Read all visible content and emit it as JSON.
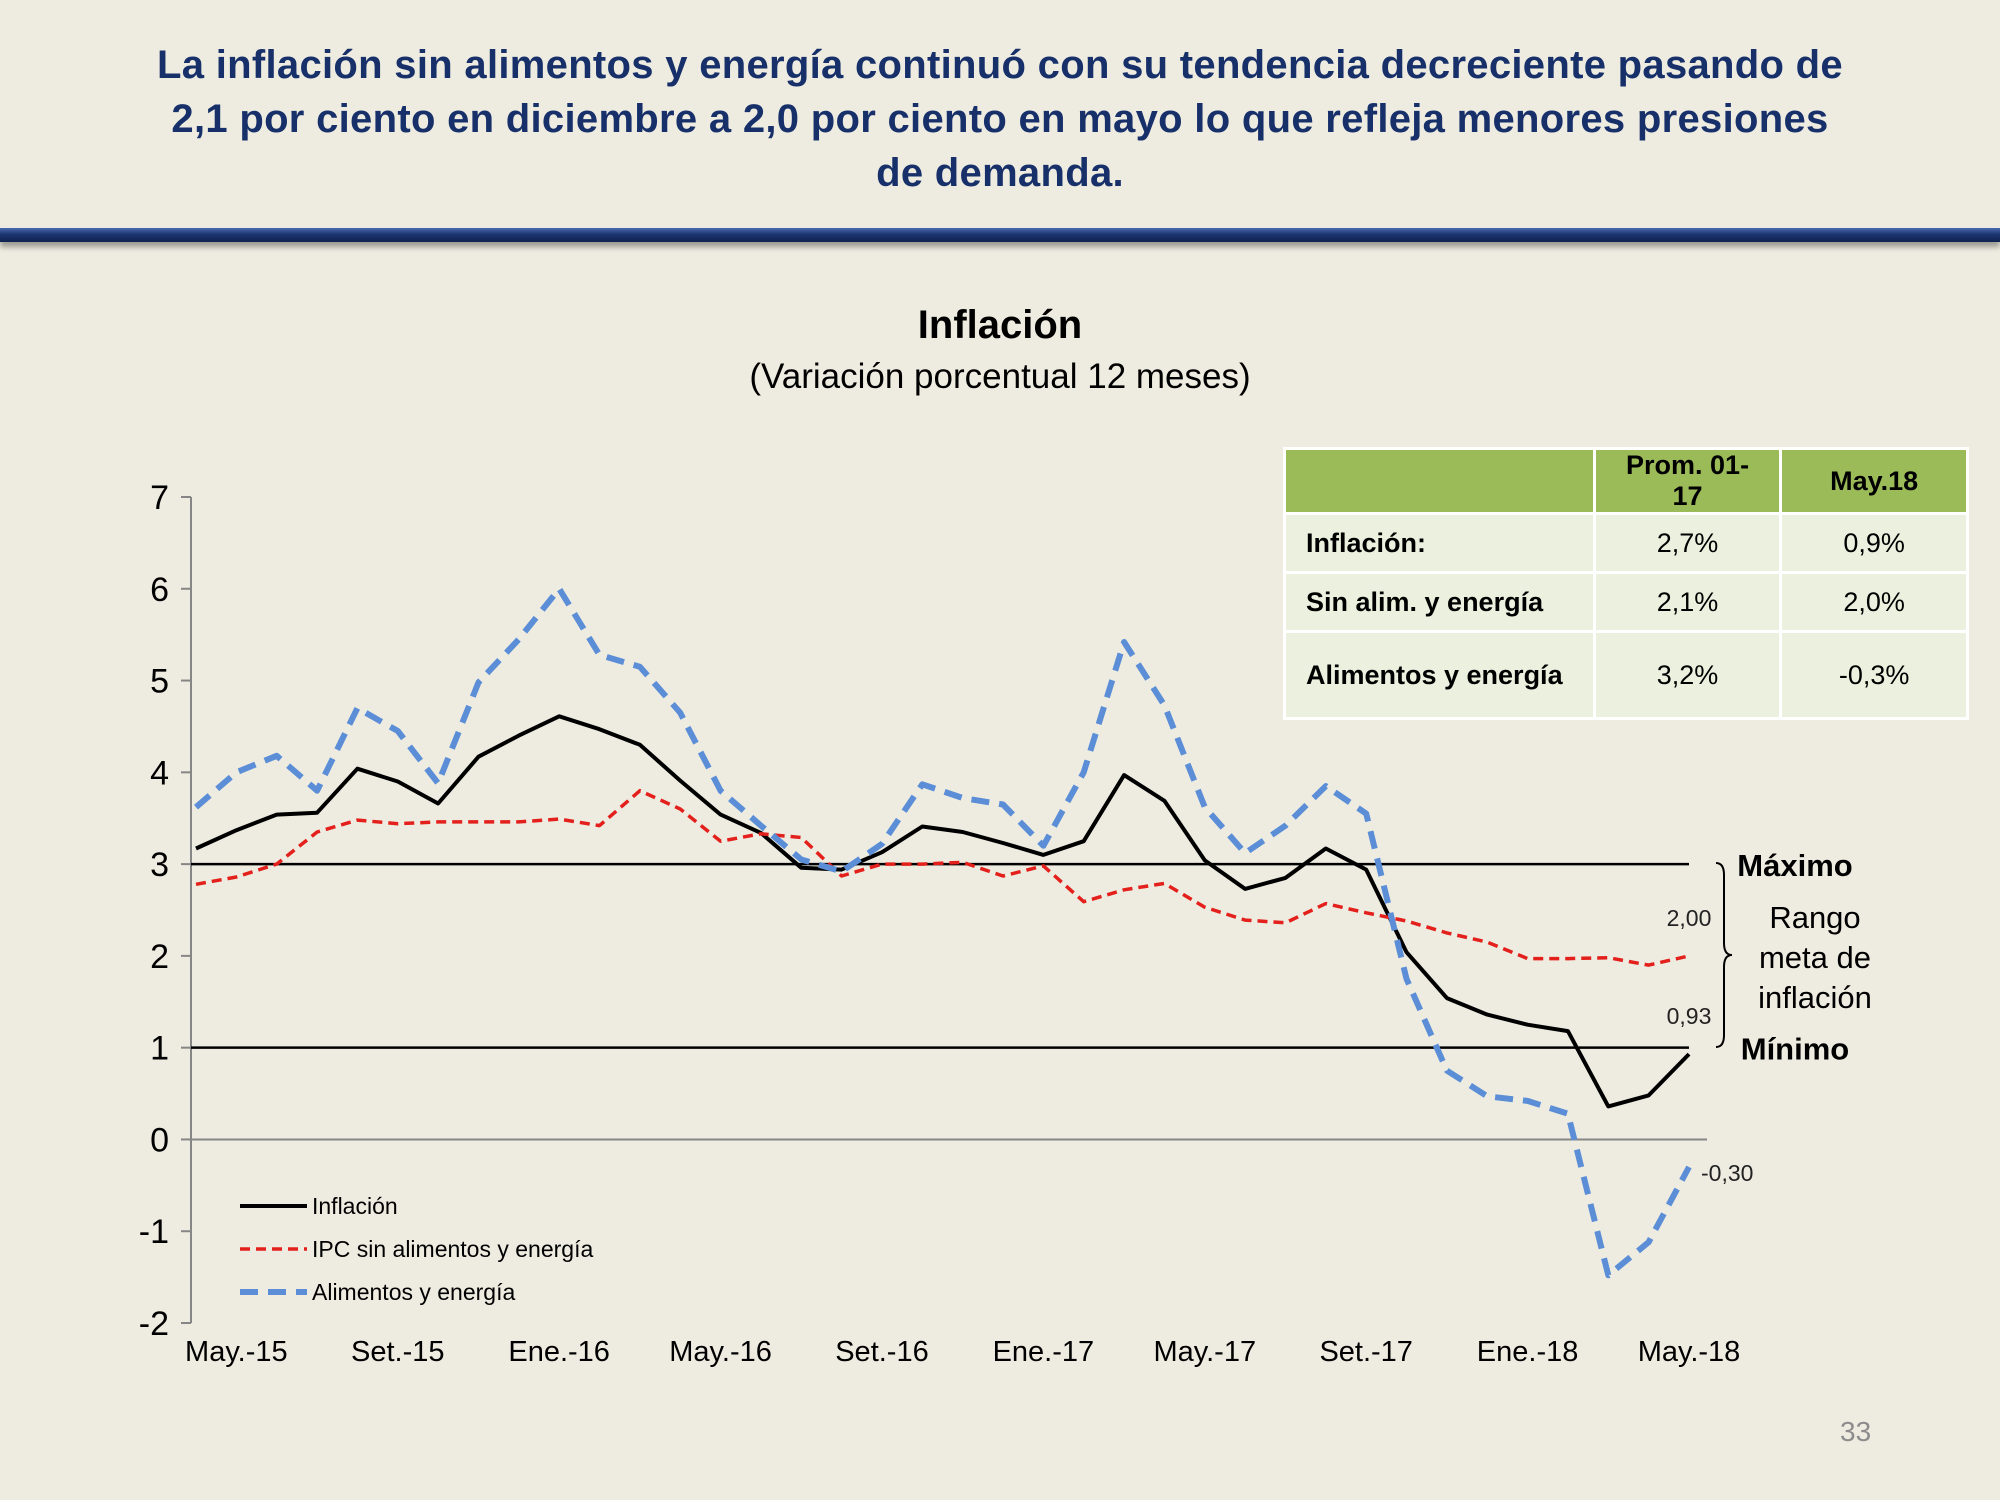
{
  "header": {
    "title_lines": [
      "La inflación sin alimentos y energía continuó con su tendencia decreciente pasando de",
      "2,1 por ciento en diciembre a 2,0 por ciento en mayo lo que refleja menores presiones",
      "de demanda."
    ]
  },
  "chart_data": {
    "type": "line",
    "title": "Inflación",
    "subtitle": "(Variación porcentual 12 meses)",
    "categories": [
      null,
      "May.-15",
      null,
      null,
      null,
      "Set.-15",
      null,
      null,
      null,
      "Ene.-16",
      null,
      null,
      null,
      "May.-16",
      null,
      null,
      null,
      "Set.-16",
      null,
      null,
      null,
      "Ene.-17",
      null,
      null,
      null,
      "May.-17",
      null,
      null,
      null,
      "Set.-17",
      null,
      null,
      null,
      "Ene.-18",
      null,
      null,
      null,
      "May.-18"
    ],
    "series": [
      {
        "name": "Inflación",
        "color": "#000000",
        "dash": "solid",
        "values": [
          3.17,
          3.37,
          3.54,
          3.56,
          4.04,
          3.9,
          3.66,
          4.17,
          4.4,
          4.61,
          4.47,
          4.3,
          3.91,
          3.54,
          3.34,
          2.96,
          2.94,
          3.13,
          3.41,
          3.35,
          3.23,
          3.1,
          3.25,
          3.97,
          3.69,
          3.04,
          2.73,
          2.85,
          3.17,
          2.94,
          2.04,
          1.54,
          1.36,
          1.25,
          1.18,
          0.36,
          0.48,
          0.93
        ],
        "value_labels": [
          null,
          null,
          null,
          null,
          null,
          null,
          null,
          null,
          null,
          null,
          null,
          null,
          null,
          null,
          null,
          null,
          null,
          null,
          null,
          null,
          null,
          null,
          null,
          null,
          null,
          null,
          null,
          null,
          null,
          null,
          null,
          null,
          null,
          null,
          null,
          null,
          null,
          "0,93"
        ]
      },
      {
        "name": "IPC sin alimentos y energía",
        "color": "#e3201b",
        "dash": "short",
        "values": [
          2.78,
          2.86,
          3.0,
          3.35,
          3.48,
          3.44,
          3.46,
          3.46,
          3.46,
          3.49,
          3.42,
          3.8,
          3.6,
          3.25,
          3.33,
          3.29,
          2.87,
          3.0,
          3.0,
          3.02,
          2.87,
          2.98,
          2.59,
          2.72,
          2.79,
          2.53,
          2.39,
          2.36,
          2.57,
          2.47,
          2.38,
          2.25,
          2.15,
          1.97,
          1.97,
          1.98,
          1.9,
          2.0
        ],
        "value_labels": [
          null,
          null,
          null,
          null,
          null,
          null,
          null,
          null,
          null,
          null,
          null,
          null,
          null,
          null,
          null,
          null,
          null,
          null,
          null,
          null,
          null,
          null,
          null,
          null,
          null,
          null,
          null,
          null,
          null,
          null,
          null,
          null,
          null,
          null,
          null,
          null,
          null,
          "2,00"
        ]
      },
      {
        "name": "Alimentos y energía",
        "color": "#5b8ed6",
        "dash": "long",
        "values": [
          3.62,
          4.0,
          4.18,
          3.8,
          4.7,
          4.45,
          3.88,
          4.98,
          5.45,
          6.0,
          5.28,
          5.15,
          4.65,
          3.8,
          3.42,
          3.05,
          2.92,
          3.22,
          3.87,
          3.72,
          3.65,
          3.2,
          4.0,
          5.42,
          4.73,
          3.62,
          3.12,
          3.42,
          3.85,
          3.55,
          1.75,
          0.75,
          0.47,
          0.42,
          0.28,
          -1.48,
          -1.12,
          -0.3
        ],
        "value_labels": [
          null,
          null,
          null,
          null,
          null,
          null,
          null,
          null,
          null,
          null,
          null,
          null,
          null,
          null,
          null,
          null,
          null,
          null,
          null,
          null,
          null,
          null,
          null,
          null,
          null,
          null,
          null,
          null,
          null,
          null,
          null,
          null,
          null,
          null,
          null,
          null,
          null,
          "-0,30"
        ]
      }
    ],
    "ylim": [
      -2,
      7
    ],
    "yticks": [
      -2,
      -1,
      0,
      1,
      2,
      3,
      4,
      5,
      6,
      7
    ],
    "reference_lines": [
      {
        "value": 3,
        "label": "Máximo"
      },
      {
        "value": 1,
        "label": "Mínimo"
      }
    ],
    "annotation_lines": [
      "Rango",
      "meta de",
      "inflación"
    ]
  },
  "table": {
    "headers": [
      "Prom. 01-17",
      "May.18"
    ],
    "rows": [
      {
        "label": "Inflación:",
        "cells": [
          "2,7%",
          "0,9%"
        ]
      },
      {
        "label": "Sin alim. y energía",
        "cells": [
          "2,1%",
          "2,0%"
        ]
      },
      {
        "label": "Alimentos y energía",
        "cells": [
          "3,2%",
          "-0,3%"
        ]
      }
    ]
  },
  "page_number": "33"
}
